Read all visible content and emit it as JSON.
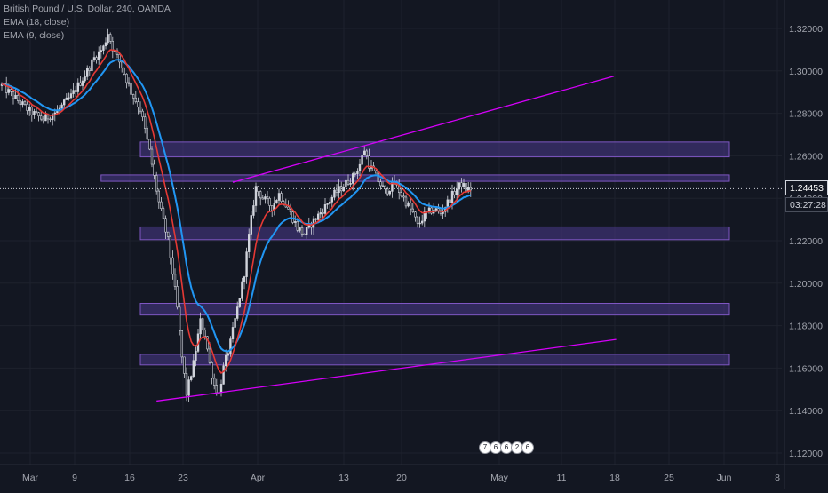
{
  "legend": {
    "title": "British Pound / U.S. Dollar, 240, OANDA",
    "ema18": "EMA (18, close)",
    "ema9": "EMA (9, close)"
  },
  "price_label": "1.24453",
  "countdown_label": "03:27:28",
  "events": [
    "7",
    "6",
    "6",
    "2",
    "6"
  ],
  "colors": {
    "background": "#131722",
    "grid": "#1e222d",
    "axis_text": "#a3a6af",
    "up_candle": "#d1d4dc",
    "down_candle": "#d1d4dc",
    "ema18": "#2196f3",
    "ema9": "#e53935",
    "zone_fill": "#4b3a8c",
    "zone_border": "#7e57c2",
    "trendline": "#d500f9"
  },
  "chart_data": {
    "type": "candlestick",
    "title": "British Pound / U.S. Dollar, 240, OANDA",
    "x_ticks": [
      "Mar",
      "9",
      "16",
      "23",
      "Apr",
      "13",
      "20",
      "May",
      "11",
      "18",
      "25",
      "Jun",
      "8"
    ],
    "y_ticks": [
      "1.32000",
      "1.30000",
      "1.28000",
      "1.26000",
      "1.24000",
      "1.22000",
      "1.20000",
      "1.18000",
      "1.16000",
      "1.14000",
      "1.12000"
    ],
    "ylim": [
      1.115,
      1.325
    ],
    "last_price": 1.24453,
    "price_path": [
      [
        0,
        1.293
      ],
      [
        6,
        1.287
      ],
      [
        12,
        1.281
      ],
      [
        18,
        1.277
      ],
      [
        24,
        1.281
      ],
      [
        30,
        1.288
      ],
      [
        36,
        1.298
      ],
      [
        40,
        1.306
      ],
      [
        44,
        1.311
      ],
      [
        46,
        1.318
      ],
      [
        48,
        1.311
      ],
      [
        52,
        1.302
      ],
      [
        56,
        1.29
      ],
      [
        60,
        1.282
      ],
      [
        64,
        1.262
      ],
      [
        68,
        1.238
      ],
      [
        72,
        1.22
      ],
      [
        74,
        1.205
      ],
      [
        76,
        1.188
      ],
      [
        78,
        1.165
      ],
      [
        80,
        1.148
      ],
      [
        83,
        1.162
      ],
      [
        86,
        1.182
      ],
      [
        88,
        1.176
      ],
      [
        90,
        1.162
      ],
      [
        92,
        1.152
      ],
      [
        94,
        1.148
      ],
      [
        96,
        1.16
      ],
      [
        99,
        1.172
      ],
      [
        102,
        1.188
      ],
      [
        105,
        1.205
      ],
      [
        107,
        1.222
      ],
      [
        109,
        1.238
      ],
      [
        110,
        1.245
      ],
      [
        113,
        1.24
      ],
      [
        117,
        1.236
      ],
      [
        120,
        1.242
      ],
      [
        124,
        1.235
      ],
      [
        128,
        1.226
      ],
      [
        131,
        1.223
      ],
      [
        134,
        1.228
      ],
      [
        137,
        1.232
      ],
      [
        140,
        1.236
      ],
      [
        144,
        1.242
      ],
      [
        148,
        1.246
      ],
      [
        152,
        1.25
      ],
      [
        155,
        1.256
      ],
      [
        157,
        1.263
      ],
      [
        159,
        1.256
      ],
      [
        162,
        1.25
      ],
      [
        166,
        1.243
      ],
      [
        170,
        1.247
      ],
      [
        174,
        1.24
      ],
      [
        178,
        1.233
      ],
      [
        180,
        1.227
      ],
      [
        183,
        1.232
      ],
      [
        187,
        1.235
      ],
      [
        190,
        1.233
      ],
      [
        193,
        1.238
      ],
      [
        196,
        1.243
      ],
      [
        199,
        1.247
      ],
      [
        201,
        1.244
      ],
      [
        203,
        1.2445
      ]
    ],
    "series": [
      {
        "name": "EMA (18, close)",
        "role": "ema18"
      },
      {
        "name": "EMA (9, close)",
        "role": "ema9"
      }
    ],
    "zones": [
      {
        "from_bar": 60,
        "to_bar": 315,
        "low": 1.2595,
        "high": 1.2665
      },
      {
        "from_bar": 43,
        "to_bar": 315,
        "low": 1.248,
        "high": 1.251
      },
      {
        "from_bar": 60,
        "to_bar": 315,
        "low": 1.2205,
        "high": 1.2265
      },
      {
        "from_bar": 60,
        "to_bar": 315,
        "low": 1.185,
        "high": 1.1905
      },
      {
        "from_bar": 60,
        "to_bar": 315,
        "low": 1.1615,
        "high": 1.1665
      }
    ],
    "trendlines": [
      {
        "x1_bar": 100,
        "y1": 1.2475,
        "x2_bar": 265,
        "y2": 1.2975
      },
      {
        "x1_bar": 67,
        "y1": 1.1445,
        "x2_bar": 266,
        "y2": 1.1735
      }
    ]
  }
}
